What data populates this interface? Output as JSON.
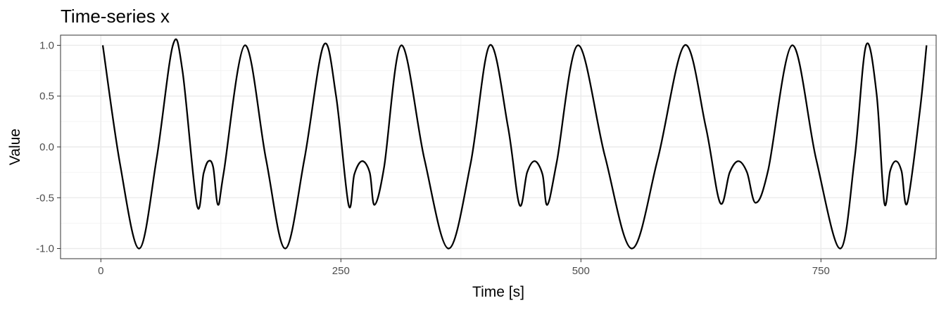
{
  "chart_data": {
    "type": "line",
    "title": "Time-series x",
    "xlabel": "Time [s]",
    "ylabel": "Value",
    "xlim": [
      -42,
      870
    ],
    "ylim": [
      -1.1,
      1.1
    ],
    "x_ticks": [
      0,
      250,
      500,
      750
    ],
    "x_tick_labels": [
      "0",
      "250",
      "500",
      "750"
    ],
    "y_ticks": [
      -1.0,
      -0.5,
      0.0,
      0.5,
      1.0
    ],
    "y_tick_labels": [
      "-1.0",
      "-0.5",
      "0.0",
      "0.5",
      "1.0"
    ],
    "grid": true,
    "legend": "none",
    "series": [
      {
        "color": "#000000",
        "x": [
          2,
          20,
          40,
          58,
          75,
          85,
          100,
          107,
          112,
          117,
          122,
          128,
          150,
          172,
          192,
          212,
          232,
          245,
          258,
          264,
          272,
          280,
          285,
          295,
          313,
          337,
          362,
          385,
          405,
          424,
          436,
          444,
          452,
          460,
          465,
          475,
          497,
          525,
          553,
          580,
          608,
          630,
          645,
          655,
          664,
          673,
          682,
          695,
          720,
          745,
          770,
          785,
          797,
          808,
          816,
          822,
          828,
          834,
          840,
          853,
          860
        ],
        "y": [
          1.0,
          -0.17,
          -1.0,
          -0.12,
          1.0,
          0.75,
          -0.57,
          -0.26,
          -0.14,
          -0.2,
          -0.57,
          -0.25,
          1.0,
          -0.12,
          -1.0,
          -0.12,
          1.0,
          0.5,
          -0.57,
          -0.27,
          -0.14,
          -0.25,
          -0.57,
          -0.2,
          1.0,
          -0.12,
          -1.0,
          -0.17,
          1.0,
          0.2,
          -0.57,
          -0.25,
          -0.14,
          -0.27,
          -0.57,
          -0.14,
          1.0,
          -0.09,
          -1.0,
          -0.12,
          1.0,
          0.2,
          -0.55,
          -0.25,
          -0.14,
          -0.25,
          -0.55,
          -0.23,
          1.0,
          -0.12,
          -1.0,
          -0.12,
          1.0,
          0.52,
          -0.55,
          -0.24,
          -0.14,
          -0.24,
          -0.55,
          0.35,
          1.0
        ]
      }
    ]
  }
}
